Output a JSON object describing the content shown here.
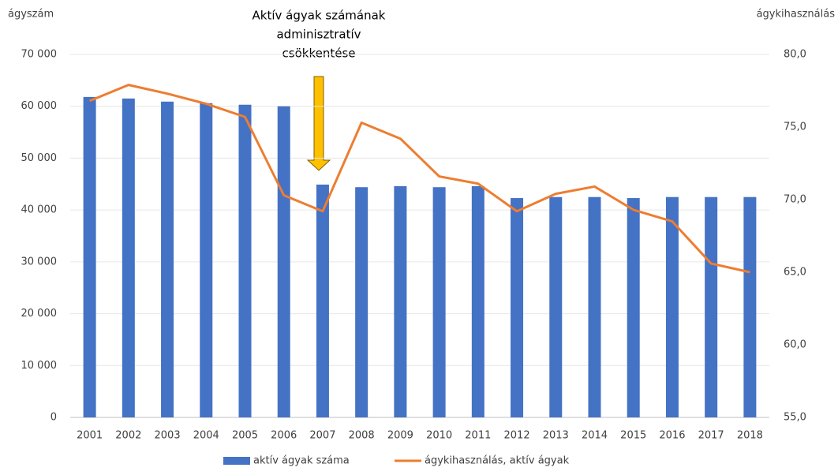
{
  "chart_data": {
    "type": "bar_line",
    "annotation": [
      "Aktív ágyak számának",
      "adminisztratív",
      "csökkentése"
    ],
    "y_label": "ágyszám",
    "y2_label": "ágykihasználás",
    "categories": [
      "2001",
      "2002",
      "2003",
      "2004",
      "2005",
      "2006",
      "2007",
      "2008",
      "2009",
      "2010",
      "2011",
      "2012",
      "2013",
      "2014",
      "2015",
      "2016",
      "2017",
      "2018"
    ],
    "series": [
      {
        "name": "aktív ágyak száma",
        "type": "bar",
        "color": "#4472c4",
        "values": [
          61800,
          61500,
          60900,
          60600,
          60300,
          60000,
          44900,
          44400,
          44600,
          44400,
          44600,
          42300,
          42500,
          42500,
          42300,
          42500,
          42500,
          42500
        ]
      },
      {
        "name": "ágykihasználás, aktív ágyak",
        "type": "line",
        "axis": "y2",
        "color": "#ed7d31",
        "values": [
          76.8,
          77.9,
          77.3,
          76.6,
          75.7,
          70.3,
          69.2,
          75.3,
          74.2,
          71.6,
          71.1,
          69.2,
          70.4,
          70.9,
          69.3,
          68.5,
          65.6,
          65.0
        ]
      }
    ],
    "ylim": [
      0,
      70000
    ],
    "yticks": [
      0,
      {
        "value": 10000,
        "label": "10 000"
      },
      {
        "value": 20000,
        "label": "20 000"
      },
      {
        "value": 30000,
        "label": "30 000"
      },
      {
        "value": 40000,
        "label": "40 000"
      },
      {
        "value": 50000,
        "label": "50 000"
      },
      {
        "value": 60000,
        "label": "60 000"
      },
      {
        "value": 70000,
        "label": "70 000"
      }
    ],
    "y2lim": [
      55,
      80
    ],
    "y2ticks": [
      {
        "value": 55,
        "label": "55,0"
      },
      {
        "value": 60,
        "label": "60,0"
      },
      {
        "value": 65,
        "label": "65,0"
      },
      {
        "value": 70,
        "label": "70,0"
      },
      {
        "value": 75,
        "label": "75,0"
      },
      {
        "value": 80,
        "label": "80,0"
      }
    ],
    "grid": true
  }
}
